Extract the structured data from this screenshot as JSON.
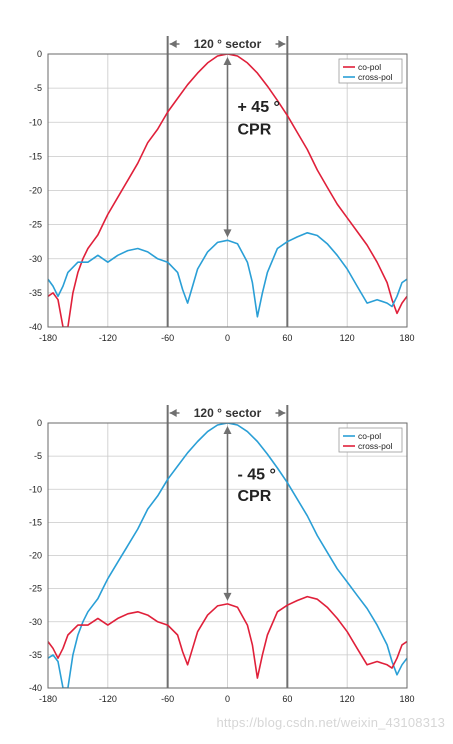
{
  "chart_data": [
    {
      "type": "line",
      "xlim": [
        -180,
        180
      ],
      "ylim": [
        -40,
        0
      ],
      "x_ticks": [
        "-180",
        "-120",
        "-60",
        "0",
        "60",
        "120",
        "180"
      ],
      "y_ticks": [
        "0",
        "-5",
        "-10",
        "-15",
        "-20",
        "-25",
        "-30",
        "-35",
        "-40"
      ],
      "grid": true,
      "legend_position": "top-right",
      "sector_label": "120 ° sector",
      "sector_bounds": [
        -60,
        60
      ],
      "annotation_angle": "+ 45 °",
      "annotation_metric": "CPR",
      "series": [
        {
          "name": "co-pol",
          "color": "#e0203a",
          "x": [
            -180,
            -175,
            -170,
            -165,
            -160,
            -155,
            -150,
            -145,
            -140,
            -135,
            -130,
            -125,
            -120,
            -110,
            -100,
            -90,
            -80,
            -70,
            -60,
            -50,
            -40,
            -30,
            -20,
            -10,
            0,
            10,
            20,
            30,
            40,
            50,
            60,
            70,
            80,
            90,
            100,
            110,
            120,
            130,
            140,
            150,
            160,
            165,
            170,
            175,
            180
          ],
          "y": [
            -35.5,
            -35.0,
            -36.0,
            -40.0,
            -40.0,
            -35.0,
            -32.0,
            -30.0,
            -28.5,
            -27.5,
            -26.5,
            -25.0,
            -23.5,
            -21.0,
            -18.5,
            -16.0,
            -13.0,
            -11.0,
            -8.5,
            -6.5,
            -4.5,
            -2.8,
            -1.3,
            -0.3,
            0.0,
            -0.3,
            -1.3,
            -2.8,
            -4.7,
            -6.8,
            -9.0,
            -11.5,
            -14.0,
            -17.0,
            -19.5,
            -22.0,
            -24.0,
            -26.0,
            -28.0,
            -30.5,
            -33.5,
            -36.0,
            -38.0,
            -36.5,
            -35.5
          ]
        },
        {
          "name": "cross-pol",
          "color": "#2a9fd6",
          "x": [
            -180,
            -175,
            -170,
            -165,
            -160,
            -150,
            -140,
            -130,
            -120,
            -110,
            -100,
            -90,
            -80,
            -70,
            -60,
            -50,
            -45,
            -40,
            -35,
            -30,
            -20,
            -10,
            0,
            10,
            20,
            25,
            30,
            35,
            40,
            50,
            60,
            70,
            80,
            90,
            100,
            110,
            120,
            130,
            140,
            150,
            160,
            165,
            170,
            175,
            180
          ],
          "y": [
            -33.0,
            -34.0,
            -35.5,
            -34.0,
            -32.0,
            -30.5,
            -30.5,
            -29.5,
            -30.5,
            -29.5,
            -28.8,
            -28.5,
            -29.0,
            -30.0,
            -30.5,
            -32.0,
            -34.5,
            -36.5,
            -34.0,
            -31.5,
            -29.0,
            -27.6,
            -27.3,
            -27.8,
            -30.5,
            -33.5,
            -38.5,
            -35.0,
            -32.0,
            -28.5,
            -27.5,
            -26.8,
            -26.2,
            -26.6,
            -27.8,
            -29.5,
            -31.5,
            -34.0,
            -36.5,
            -36.0,
            -36.5,
            -37.0,
            -35.5,
            -33.5,
            -33.0
          ]
        }
      ]
    },
    {
      "type": "line",
      "xlim": [
        -180,
        180
      ],
      "ylim": [
        -40,
        0
      ],
      "x_ticks": [
        "-180",
        "-120",
        "-60",
        "0",
        "60",
        "120",
        "180"
      ],
      "y_ticks": [
        "0",
        "-5",
        "-10",
        "-15",
        "-20",
        "-25",
        "-30",
        "-35",
        "-40"
      ],
      "grid": true,
      "legend_position": "top-right",
      "sector_label": "120 ° sector",
      "sector_bounds": [
        -60,
        60
      ],
      "annotation_angle": "- 45 °",
      "annotation_metric": "CPR",
      "series": [
        {
          "name": "co-pol",
          "color": "#2a9fd6",
          "x": [
            -180,
            -175,
            -170,
            -165,
            -160,
            -155,
            -150,
            -145,
            -140,
            -135,
            -130,
            -125,
            -120,
            -110,
            -100,
            -90,
            -80,
            -70,
            -60,
            -50,
            -40,
            -30,
            -20,
            -10,
            0,
            10,
            20,
            30,
            40,
            50,
            60,
            70,
            80,
            90,
            100,
            110,
            120,
            130,
            140,
            150,
            160,
            165,
            170,
            175,
            180
          ],
          "y": [
            -35.5,
            -35.0,
            -36.0,
            -40.0,
            -40.0,
            -35.0,
            -32.0,
            -30.0,
            -28.5,
            -27.5,
            -26.5,
            -25.0,
            -23.5,
            -21.0,
            -18.5,
            -16.0,
            -13.0,
            -11.0,
            -8.5,
            -6.5,
            -4.5,
            -2.8,
            -1.3,
            -0.3,
            0.0,
            -0.3,
            -1.3,
            -2.8,
            -4.7,
            -6.8,
            -9.0,
            -11.5,
            -14.0,
            -17.0,
            -19.5,
            -22.0,
            -24.0,
            -26.0,
            -28.0,
            -30.5,
            -33.5,
            -36.0,
            -38.0,
            -36.5,
            -35.5
          ]
        },
        {
          "name": "cross-pol",
          "color": "#e0203a",
          "x": [
            -180,
            -175,
            -170,
            -165,
            -160,
            -150,
            -140,
            -130,
            -120,
            -110,
            -100,
            -90,
            -80,
            -70,
            -60,
            -50,
            -45,
            -40,
            -35,
            -30,
            -20,
            -10,
            0,
            10,
            20,
            25,
            30,
            35,
            40,
            50,
            60,
            70,
            80,
            90,
            100,
            110,
            120,
            130,
            140,
            150,
            160,
            165,
            170,
            175,
            180
          ],
          "y": [
            -33.0,
            -34.0,
            -35.5,
            -34.0,
            -32.0,
            -30.5,
            -30.5,
            -29.5,
            -30.5,
            -29.5,
            -28.8,
            -28.5,
            -29.0,
            -30.0,
            -30.5,
            -32.0,
            -34.5,
            -36.5,
            -34.0,
            -31.5,
            -29.0,
            -27.6,
            -27.3,
            -27.8,
            -30.5,
            -33.5,
            -38.5,
            -35.0,
            -32.0,
            -28.5,
            -27.5,
            -26.8,
            -26.2,
            -26.6,
            -27.8,
            -29.5,
            -31.5,
            -34.0,
            -36.5,
            -36.0,
            -36.5,
            -37.0,
            -35.5,
            -33.5,
            -33.0
          ]
        }
      ]
    }
  ],
  "watermark": "https://blog.csdn.net/weixin_43108313"
}
